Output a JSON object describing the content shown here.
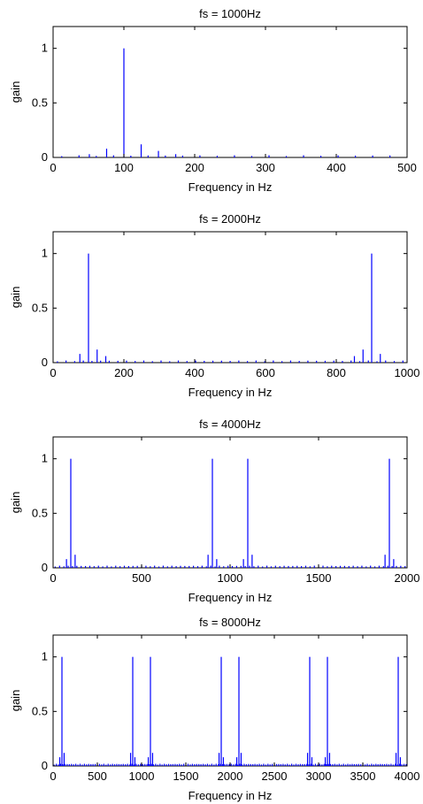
{
  "figure": {
    "background": "#ffffff",
    "line_color": "#0000ff"
  },
  "chart_data": [
    {
      "type": "bar",
      "title": "fs = 1000Hz",
      "xlabel": "Frequency in Hz",
      "ylabel": "gain",
      "xlim": [
        0,
        500
      ],
      "ylim": [
        0,
        1.2
      ],
      "xticks": [
        0,
        100,
        200,
        300,
        400,
        500
      ],
      "xtick_labels": [
        "0",
        "100",
        "200",
        "300",
        "400",
        "500"
      ],
      "yticks": [
        0,
        0.5,
        1
      ],
      "ytick_labels": [
        "0",
        "0.5",
        "1"
      ],
      "fundamental": 100,
      "spacing": 24.4,
      "peaks": [
        {
          "x": 100,
          "y": 1.0
        }
      ],
      "sidelobes": [
        {
          "x": 75.6,
          "y": 0.08
        },
        {
          "x": 124.4,
          "y": 0.12
        },
        {
          "x": 51.2,
          "y": 0.03
        },
        {
          "x": 148.8,
          "y": 0.06
        },
        {
          "x": 173.2,
          "y": 0.03
        }
      ]
    },
    {
      "type": "bar",
      "title": "fs = 2000Hz",
      "xlabel": "Frequency in Hz",
      "ylabel": "gain",
      "xlim": [
        0,
        1000
      ],
      "ylim": [
        0,
        1.2
      ],
      "xticks": [
        0,
        200,
        400,
        600,
        800,
        1000
      ],
      "xtick_labels": [
        "0",
        "200",
        "400",
        "600",
        "800",
        "1000"
      ],
      "yticks": [
        0,
        0.5,
        1
      ],
      "ytick_labels": [
        "0",
        "0.5",
        "1"
      ],
      "spacing": 24.4,
      "peaks": [
        {
          "x": 100,
          "y": 1.0
        },
        {
          "x": 900,
          "y": 1.0
        }
      ],
      "sidelobes": [
        {
          "x": 75.6,
          "y": 0.08
        },
        {
          "x": 124.4,
          "y": 0.12
        },
        {
          "x": 148.8,
          "y": 0.06
        },
        {
          "x": 875.6,
          "y": 0.12
        },
        {
          "x": 924.4,
          "y": 0.08
        },
        {
          "x": 851.2,
          "y": 0.06
        }
      ]
    },
    {
      "type": "bar",
      "title": "fs = 4000Hz",
      "xlabel": "Frequency in Hz",
      "ylabel": "gain",
      "xlim": [
        0,
        2000
      ],
      "ylim": [
        0,
        1.2
      ],
      "xticks": [
        0,
        500,
        1000,
        1500,
        2000
      ],
      "xtick_labels": [
        "0",
        "500",
        "1000",
        "1500",
        "2000"
      ],
      "yticks": [
        0,
        0.5,
        1
      ],
      "ytick_labels": [
        "0",
        "0.5",
        "1"
      ],
      "spacing": 24.4,
      "peaks": [
        {
          "x": 100,
          "y": 1.0
        },
        {
          "x": 900,
          "y": 1.0
        },
        {
          "x": 1100,
          "y": 1.0
        },
        {
          "x": 1900,
          "y": 1.0
        }
      ],
      "sidelobes": [
        {
          "x": 75.6,
          "y": 0.08
        },
        {
          "x": 124.4,
          "y": 0.12
        },
        {
          "x": 875.6,
          "y": 0.12
        },
        {
          "x": 924.4,
          "y": 0.08
        },
        {
          "x": 1075.6,
          "y": 0.08
        },
        {
          "x": 1124.4,
          "y": 0.12
        },
        {
          "x": 1875.6,
          "y": 0.12
        },
        {
          "x": 1924.4,
          "y": 0.08
        }
      ]
    },
    {
      "type": "bar",
      "title": "fs = 8000Hz",
      "xlabel": "Frequency in Hz",
      "ylabel": "gain",
      "xlim": [
        0,
        4000
      ],
      "ylim": [
        0,
        1.2
      ],
      "xticks": [
        0,
        500,
        1000,
        1500,
        2000,
        2500,
        3000,
        3500,
        4000
      ],
      "xtick_labels": [
        "0",
        "500",
        "1000",
        "1500",
        "2000",
        "2500",
        "3000",
        "3500",
        "4000"
      ],
      "yticks": [
        0,
        0.5,
        1
      ],
      "ytick_labels": [
        "0",
        "0.5",
        "1"
      ],
      "spacing": 24.4,
      "peaks": [
        {
          "x": 100,
          "y": 1.0
        },
        {
          "x": 900,
          "y": 1.0
        },
        {
          "x": 1100,
          "y": 1.0
        },
        {
          "x": 1900,
          "y": 1.0
        },
        {
          "x": 2100,
          "y": 1.0
        },
        {
          "x": 2900,
          "y": 1.0
        },
        {
          "x": 3100,
          "y": 1.0
        },
        {
          "x": 3900,
          "y": 1.0
        }
      ],
      "sidelobes": [
        {
          "x": 75.6,
          "y": 0.08
        },
        {
          "x": 124.4,
          "y": 0.12
        },
        {
          "x": 875.6,
          "y": 0.12
        },
        {
          "x": 924.4,
          "y": 0.08
        },
        {
          "x": 1075.6,
          "y": 0.08
        },
        {
          "x": 1124.4,
          "y": 0.12
        },
        {
          "x": 1875.6,
          "y": 0.12
        },
        {
          "x": 1924.4,
          "y": 0.08
        },
        {
          "x": 2075.6,
          "y": 0.08
        },
        {
          "x": 2124.4,
          "y": 0.12
        },
        {
          "x": 2875.6,
          "y": 0.12
        },
        {
          "x": 2924.4,
          "y": 0.08
        },
        {
          "x": 3075.6,
          "y": 0.08
        },
        {
          "x": 3124.4,
          "y": 0.12
        },
        {
          "x": 3875.6,
          "y": 0.12
        },
        {
          "x": 3924.4,
          "y": 0.08
        }
      ]
    }
  ]
}
